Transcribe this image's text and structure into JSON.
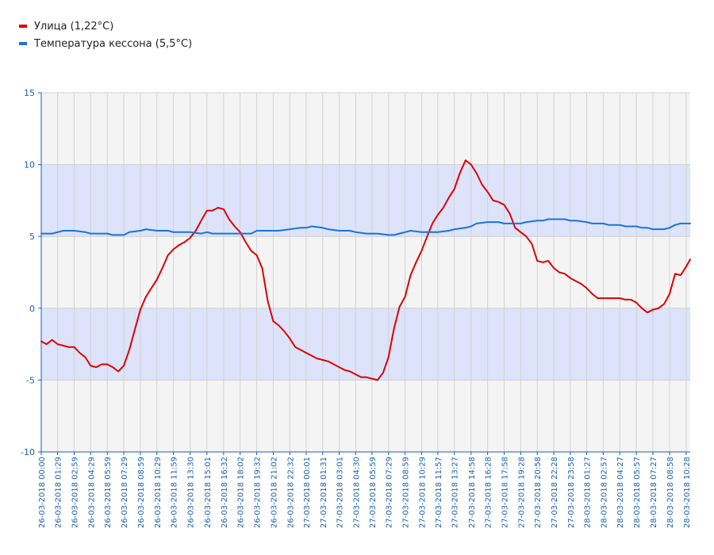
{
  "chart_data": {
    "type": "line",
    "title": "",
    "xlabel": "",
    "ylabel": "",
    "ylim": [
      -10,
      15
    ],
    "yticks": [
      -10,
      -5,
      0,
      5,
      10,
      15
    ],
    "grid": true,
    "legend_position": "top-left",
    "bands": [
      {
        "from": 5,
        "to": 10,
        "color": "#dce3fb"
      },
      {
        "from": -5,
        "to": 0,
        "color": "#dce3fb"
      }
    ],
    "x_range": [
      "26-03-2018 00:00",
      "28-03-2018 10:50"
    ],
    "xticks": [
      "26-03-2018 00:00",
      "26-03-2018 01:29",
      "26-03-2018 02:59",
      "26-03-2018 04:29",
      "26-03-2018 05:59",
      "26-03-2018 07:29",
      "26-03-2018 08:59",
      "26-03-2018 10:29",
      "26-03-2018 11:59",
      "26-03-2018 13:30",
      "26-03-2018 15:01",
      "26-03-2018 16:32",
      "26-03-2018 18:02",
      "26-03-2018 19:32",
      "26-03-2018 21:02",
      "26-03-2018 22:32",
      "27-03-2018 00:01",
      "27-03-2018 01:31",
      "27-03-2018 03:01",
      "27-03-2018 04:30",
      "27-03-2018 05:59",
      "27-03-2018 07:29",
      "27-03-2018 08:59",
      "27-03-2018 10:29",
      "27-03-2018 11:57",
      "27-03-2018 13:27",
      "27-03-2018 14:58",
      "27-03-2018 16:28",
      "27-03-2018 17:58",
      "27-03-2018 19:28",
      "27-03-2018 20:58",
      "27-03-2018 22:28",
      "27-03-2018 23:58",
      "28-03-2018 01:27",
      "28-03-2018 02:57",
      "28-03-2018 04:27",
      "28-03-2018 05:57",
      "28-03-2018 07:27",
      "28-03-2018 08:58",
      "28-03-2018 10:28"
    ],
    "series": [
      {
        "name": "Улица (1,22°C)",
        "color": "#dd0000",
        "points": [
          [
            "26-03-2018 00:00",
            -2.3
          ],
          [
            "26-03-2018 00:29",
            -2.5
          ],
          [
            "26-03-2018 00:59",
            -2.2
          ],
          [
            "26-03-2018 01:29",
            -2.5
          ],
          [
            "26-03-2018 01:59",
            -2.6
          ],
          [
            "26-03-2018 02:29",
            -2.7
          ],
          [
            "26-03-2018 02:59",
            -2.7
          ],
          [
            "26-03-2018 03:29",
            -3.1
          ],
          [
            "26-03-2018 03:59",
            -3.4
          ],
          [
            "26-03-2018 04:29",
            -4.0
          ],
          [
            "26-03-2018 04:59",
            -4.1
          ],
          [
            "26-03-2018 05:29",
            -3.9
          ],
          [
            "26-03-2018 05:59",
            -3.9
          ],
          [
            "26-03-2018 06:29",
            -4.1
          ],
          [
            "26-03-2018 06:59",
            -4.4
          ],
          [
            "26-03-2018 07:29",
            -4.0
          ],
          [
            "26-03-2018 07:59",
            -2.9
          ],
          [
            "26-03-2018 08:29",
            -1.5
          ],
          [
            "26-03-2018 08:59",
            -0.1
          ],
          [
            "26-03-2018 09:29",
            0.8
          ],
          [
            "26-03-2018 09:59",
            1.4
          ],
          [
            "26-03-2018 10:29",
            2.0
          ],
          [
            "26-03-2018 10:59",
            2.8
          ],
          [
            "26-03-2018 11:29",
            3.7
          ],
          [
            "26-03-2018 11:59",
            4.1
          ],
          [
            "26-03-2018 12:29",
            4.4
          ],
          [
            "26-03-2018 12:59",
            4.6
          ],
          [
            "26-03-2018 13:30",
            4.9
          ],
          [
            "26-03-2018 14:00",
            5.4
          ],
          [
            "26-03-2018 14:30",
            6.1
          ],
          [
            "26-03-2018 15:01",
            6.8
          ],
          [
            "26-03-2018 15:31",
            6.8
          ],
          [
            "26-03-2018 16:01",
            7.0
          ],
          [
            "26-03-2018 16:32",
            6.9
          ],
          [
            "26-03-2018 17:02",
            6.2
          ],
          [
            "26-03-2018 17:32",
            5.7
          ],
          [
            "26-03-2018 18:02",
            5.3
          ],
          [
            "26-03-2018 18:32",
            4.6
          ],
          [
            "26-03-2018 19:02",
            4.0
          ],
          [
            "26-03-2018 19:32",
            3.7
          ],
          [
            "26-03-2018 20:02",
            2.8
          ],
          [
            "26-03-2018 20:32",
            0.5
          ],
          [
            "26-03-2018 21:02",
            -0.9
          ],
          [
            "26-03-2018 21:32",
            -1.2
          ],
          [
            "26-03-2018 22:02",
            -1.6
          ],
          [
            "26-03-2018 22:32",
            -2.1
          ],
          [
            "26-03-2018 23:02",
            -2.7
          ],
          [
            "26-03-2018 23:31",
            -2.9
          ],
          [
            "27-03-2018 00:01",
            -3.1
          ],
          [
            "27-03-2018 00:31",
            -3.3
          ],
          [
            "27-03-2018 01:01",
            -3.5
          ],
          [
            "27-03-2018 01:31",
            -3.6
          ],
          [
            "27-03-2018 02:01",
            -3.7
          ],
          [
            "27-03-2018 02:31",
            -3.9
          ],
          [
            "27-03-2018 03:01",
            -4.1
          ],
          [
            "27-03-2018 03:31",
            -4.3
          ],
          [
            "27-03-2018 04:00",
            -4.4
          ],
          [
            "27-03-2018 04:30",
            -4.6
          ],
          [
            "27-03-2018 05:00",
            -4.8
          ],
          [
            "27-03-2018 05:29",
            -4.8
          ],
          [
            "27-03-2018 05:59",
            -4.9
          ],
          [
            "27-03-2018 06:29",
            -5.0
          ],
          [
            "27-03-2018 06:59",
            -4.5
          ],
          [
            "27-03-2018 07:29",
            -3.4
          ],
          [
            "27-03-2018 07:59",
            -1.4
          ],
          [
            "27-03-2018 08:29",
            0.1
          ],
          [
            "27-03-2018 08:59",
            0.8
          ],
          [
            "27-03-2018 09:29",
            2.3
          ],
          [
            "27-03-2018 09:59",
            3.2
          ],
          [
            "27-03-2018 10:29",
            4.0
          ],
          [
            "27-03-2018 10:59",
            5.0
          ],
          [
            "27-03-2018 11:28",
            5.9
          ],
          [
            "27-03-2018 11:57",
            6.5
          ],
          [
            "27-03-2018 12:27",
            7.0
          ],
          [
            "27-03-2018 12:57",
            7.7
          ],
          [
            "27-03-2018 13:27",
            8.3
          ],
          [
            "27-03-2018 13:57",
            9.4
          ],
          [
            "27-03-2018 14:28",
            10.3
          ],
          [
            "27-03-2018 14:58",
            10.0
          ],
          [
            "27-03-2018 15:28",
            9.4
          ],
          [
            "27-03-2018 15:58",
            8.6
          ],
          [
            "27-03-2018 16:28",
            8.1
          ],
          [
            "27-03-2018 16:58",
            7.5
          ],
          [
            "27-03-2018 17:28",
            7.4
          ],
          [
            "27-03-2018 17:58",
            7.2
          ],
          [
            "27-03-2018 18:28",
            6.6
          ],
          [
            "27-03-2018 18:58",
            5.6
          ],
          [
            "27-03-2018 19:28",
            5.3
          ],
          [
            "27-03-2018 19:58",
            5.0
          ],
          [
            "27-03-2018 20:28",
            4.5
          ],
          [
            "27-03-2018 20:58",
            3.3
          ],
          [
            "27-03-2018 21:28",
            3.2
          ],
          [
            "27-03-2018 21:58",
            3.3
          ],
          [
            "27-03-2018 22:28",
            2.8
          ],
          [
            "27-03-2018 22:58",
            2.5
          ],
          [
            "27-03-2018 23:28",
            2.4
          ],
          [
            "27-03-2018 23:58",
            2.1
          ],
          [
            "28-03-2018 00:27",
            1.9
          ],
          [
            "28-03-2018 00:57",
            1.7
          ],
          [
            "28-03-2018 01:27",
            1.4
          ],
          [
            "28-03-2018 01:57",
            1.0
          ],
          [
            "28-03-2018 02:27",
            0.7
          ],
          [
            "28-03-2018 02:57",
            0.7
          ],
          [
            "28-03-2018 03:27",
            0.7
          ],
          [
            "28-03-2018 03:57",
            0.7
          ],
          [
            "28-03-2018 04:27",
            0.7
          ],
          [
            "28-03-2018 04:57",
            0.6
          ],
          [
            "28-03-2018 05:27",
            0.6
          ],
          [
            "28-03-2018 05:57",
            0.4
          ],
          [
            "28-03-2018 06:27",
            0.0
          ],
          [
            "28-03-2018 06:57",
            -0.3
          ],
          [
            "28-03-2018 07:27",
            -0.1
          ],
          [
            "28-03-2018 07:57",
            0.0
          ],
          [
            "28-03-2018 08:28",
            0.3
          ],
          [
            "28-03-2018 08:58",
            1.0
          ],
          [
            "28-03-2018 09:28",
            2.4
          ],
          [
            "28-03-2018 09:58",
            2.3
          ],
          [
            "28-03-2018 10:28",
            2.9
          ],
          [
            "28-03-2018 10:50",
            3.4
          ]
        ]
      },
      {
        "name": "Температура кессона (5,5°C)",
        "color": "#1a73d9",
        "points": [
          [
            "26-03-2018 00:00",
            5.2
          ],
          [
            "26-03-2018 00:59",
            5.2
          ],
          [
            "26-03-2018 01:29",
            5.3
          ],
          [
            "26-03-2018 01:59",
            5.4
          ],
          [
            "26-03-2018 02:59",
            5.4
          ],
          [
            "26-03-2018 03:59",
            5.3
          ],
          [
            "26-03-2018 04:29",
            5.2
          ],
          [
            "26-03-2018 05:59",
            5.2
          ],
          [
            "26-03-2018 06:29",
            5.1
          ],
          [
            "26-03-2018 07:29",
            5.1
          ],
          [
            "26-03-2018 07:59",
            5.3
          ],
          [
            "26-03-2018 08:59",
            5.4
          ],
          [
            "26-03-2018 09:29",
            5.5
          ],
          [
            "26-03-2018 10:29",
            5.4
          ],
          [
            "26-03-2018 11:29",
            5.4
          ],
          [
            "26-03-2018 11:59",
            5.3
          ],
          [
            "26-03-2018 12:59",
            5.3
          ],
          [
            "26-03-2018 13:30",
            5.3
          ],
          [
            "26-03-2018 14:30",
            5.2
          ],
          [
            "26-03-2018 15:01",
            5.3
          ],
          [
            "26-03-2018 15:31",
            5.2
          ],
          [
            "26-03-2018 16:32",
            5.2
          ],
          [
            "26-03-2018 18:02",
            5.2
          ],
          [
            "26-03-2018 19:02",
            5.2
          ],
          [
            "26-03-2018 19:32",
            5.4
          ],
          [
            "26-03-2018 21:02",
            5.4
          ],
          [
            "26-03-2018 21:32",
            5.4
          ],
          [
            "26-03-2018 22:32",
            5.5
          ],
          [
            "26-03-2018 23:31",
            5.6
          ],
          [
            "27-03-2018 00:01",
            5.6
          ],
          [
            "27-03-2018 00:31",
            5.7
          ],
          [
            "27-03-2018 01:31",
            5.6
          ],
          [
            "27-03-2018 02:01",
            5.5
          ],
          [
            "27-03-2018 03:01",
            5.4
          ],
          [
            "27-03-2018 04:00",
            5.4
          ],
          [
            "27-03-2018 04:30",
            5.3
          ],
          [
            "27-03-2018 05:29",
            5.2
          ],
          [
            "27-03-2018 05:59",
            5.2
          ],
          [
            "27-03-2018 06:29",
            5.2
          ],
          [
            "27-03-2018 07:29",
            5.1
          ],
          [
            "27-03-2018 07:59",
            5.1
          ],
          [
            "27-03-2018 08:59",
            5.3
          ],
          [
            "27-03-2018 09:29",
            5.4
          ],
          [
            "27-03-2018 10:29",
            5.3
          ],
          [
            "27-03-2018 11:57",
            5.3
          ],
          [
            "27-03-2018 12:57",
            5.4
          ],
          [
            "27-03-2018 13:27",
            5.5
          ],
          [
            "27-03-2018 14:28",
            5.6
          ],
          [
            "27-03-2018 14:58",
            5.7
          ],
          [
            "27-03-2018 15:28",
            5.9
          ],
          [
            "27-03-2018 16:28",
            6.0
          ],
          [
            "27-03-2018 16:58",
            6.0
          ],
          [
            "27-03-2018 17:28",
            6.0
          ],
          [
            "27-03-2018 17:58",
            5.9
          ],
          [
            "27-03-2018 18:58",
            5.9
          ],
          [
            "27-03-2018 19:28",
            5.9
          ],
          [
            "27-03-2018 19:58",
            6.0
          ],
          [
            "27-03-2018 20:58",
            6.1
          ],
          [
            "27-03-2018 21:28",
            6.1
          ],
          [
            "27-03-2018 21:58",
            6.2
          ],
          [
            "27-03-2018 22:58",
            6.2
          ],
          [
            "27-03-2018 23:28",
            6.2
          ],
          [
            "27-03-2018 23:58",
            6.1
          ],
          [
            "28-03-2018 00:27",
            6.1
          ],
          [
            "28-03-2018 01:27",
            6.0
          ],
          [
            "28-03-2018 01:57",
            5.9
          ],
          [
            "28-03-2018 02:57",
            5.9
          ],
          [
            "28-03-2018 03:27",
            5.8
          ],
          [
            "28-03-2018 04:27",
            5.8
          ],
          [
            "28-03-2018 04:57",
            5.7
          ],
          [
            "28-03-2018 05:57",
            5.7
          ],
          [
            "28-03-2018 06:27",
            5.6
          ],
          [
            "28-03-2018 06:57",
            5.6
          ],
          [
            "28-03-2018 07:27",
            5.5
          ],
          [
            "28-03-2018 07:57",
            5.5
          ],
          [
            "28-03-2018 08:28",
            5.5
          ],
          [
            "28-03-2018 08:58",
            5.6
          ],
          [
            "28-03-2018 09:28",
            5.8
          ],
          [
            "28-03-2018 09:58",
            5.9
          ],
          [
            "28-03-2018 10:28",
            5.9
          ],
          [
            "28-03-2018 10:50",
            5.9
          ]
        ]
      }
    ]
  }
}
